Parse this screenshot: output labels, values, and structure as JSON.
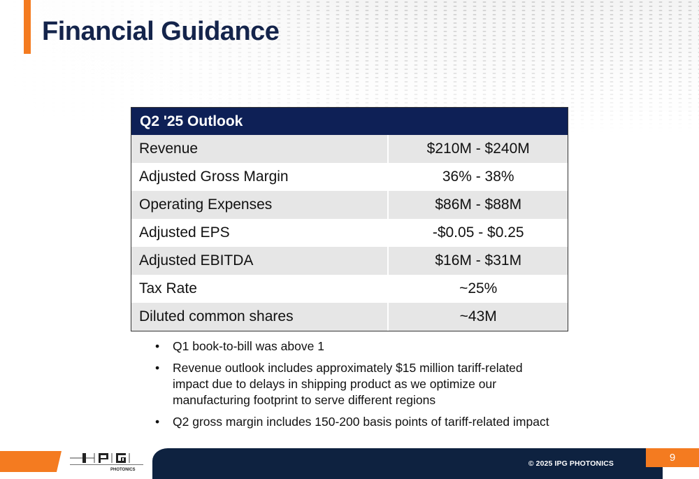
{
  "slide": {
    "title": "Financial Guidance",
    "table": {
      "header": "Q2 '25 Outlook",
      "rows": [
        {
          "label": "Revenue",
          "value": "$210M - $240M"
        },
        {
          "label": "Adjusted Gross Margin",
          "value": "36% - 38%"
        },
        {
          "label": "Operating Expenses",
          "value": "$86M - $88M"
        },
        {
          "label": "Adjusted EPS",
          "value": "-$0.05 - $0.25"
        },
        {
          "label": "Adjusted EBITDA",
          "value": "$16M - $31M"
        },
        {
          "label": "Tax Rate",
          "value": "~25%"
        },
        {
          "label": "Diluted common shares",
          "value": "~43M"
        }
      ]
    },
    "bullet_symbol": "•",
    "bullets": [
      "Q1 book-to-bill was above 1",
      "Revenue outlook includes approximately $15 million tariff-related impact due to delays in shipping product as we optimize our manufacturing footprint to serve different regions",
      "Q2 gross margin includes 150-200 basis points of tariff-related impact"
    ]
  },
  "footer": {
    "logo_letters": [
      "I",
      "P",
      "G"
    ],
    "logo_subtext": "PHOTONICS",
    "copyright": "© 2025 IPG PHOTONICS",
    "page_number": "9"
  },
  "colors": {
    "accent_orange": "#f47b20",
    "navy": "#0e2056",
    "footer_navy": "#0e2240",
    "row_shade": "#e6e6e6"
  }
}
